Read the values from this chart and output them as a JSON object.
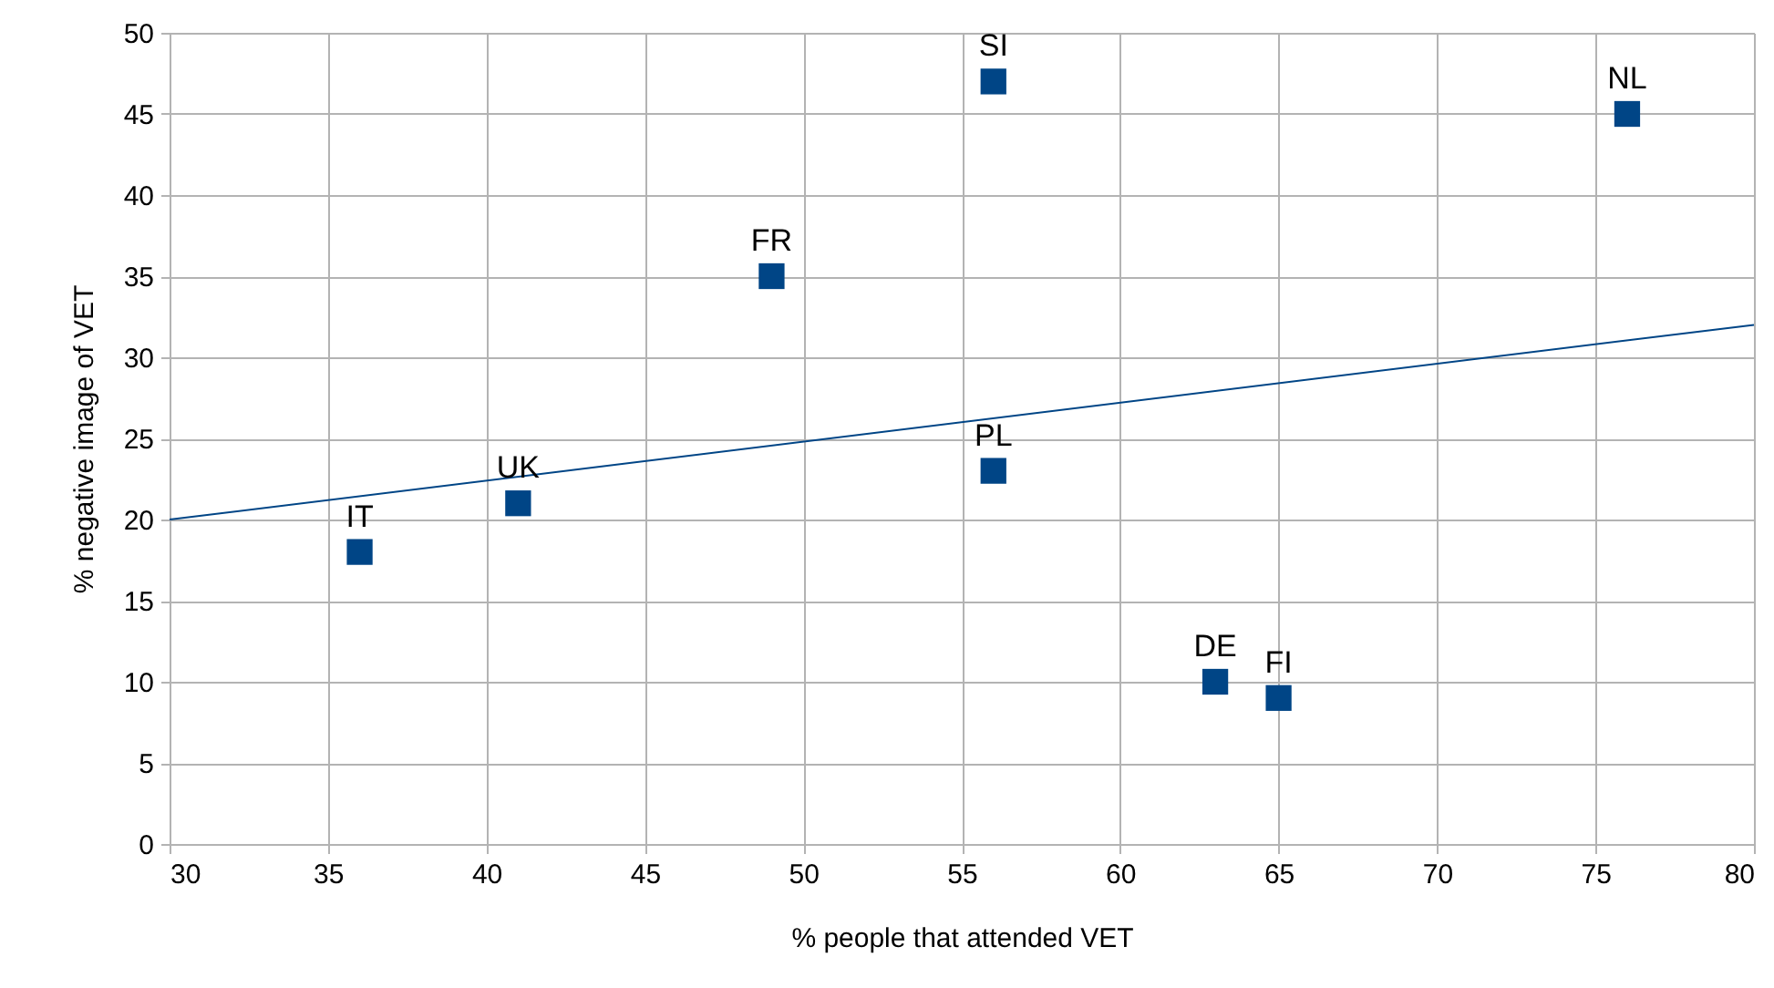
{
  "chart_data": {
    "type": "scatter",
    "xlabel": "% people that attended VET",
    "ylabel": "% negative image of VET",
    "xlim": [
      30,
      80
    ],
    "xticks": [
      30,
      35,
      40,
      45,
      50,
      55,
      60,
      65,
      70,
      75,
      80
    ],
    "ylim": [
      0,
      50
    ],
    "yticks": [
      0,
      5,
      10,
      15,
      20,
      25,
      30,
      35,
      40,
      45,
      50
    ],
    "grid": true,
    "series": [
      {
        "color": "#004586",
        "marker": "square",
        "x": [
          36,
          41,
          49,
          56,
          56,
          63,
          65,
          76
        ],
        "values": [
          18,
          21,
          35,
          47,
          23,
          10,
          9,
          45
        ]
      },
      {
        "type": "line",
        "color": "#004586",
        "x": [
          30,
          80
        ],
        "values": [
          20,
          32
        ]
      }
    ],
    "annotations": [
      {
        "text": "IT",
        "x": 36,
        "y": 18
      },
      {
        "text": "UK",
        "x": 41,
        "y": 21
      },
      {
        "text": "FR",
        "x": 49,
        "y": 35
      },
      {
        "text": "SI",
        "x": 56,
        "y": 47
      },
      {
        "text": "PL",
        "x": 56,
        "y": 23
      },
      {
        "text": "DE",
        "x": 63,
        "y": 10
      },
      {
        "text": "FI",
        "x": 65,
        "y": 9
      },
      {
        "text": "NL",
        "x": 76,
        "y": 45
      }
    ]
  }
}
